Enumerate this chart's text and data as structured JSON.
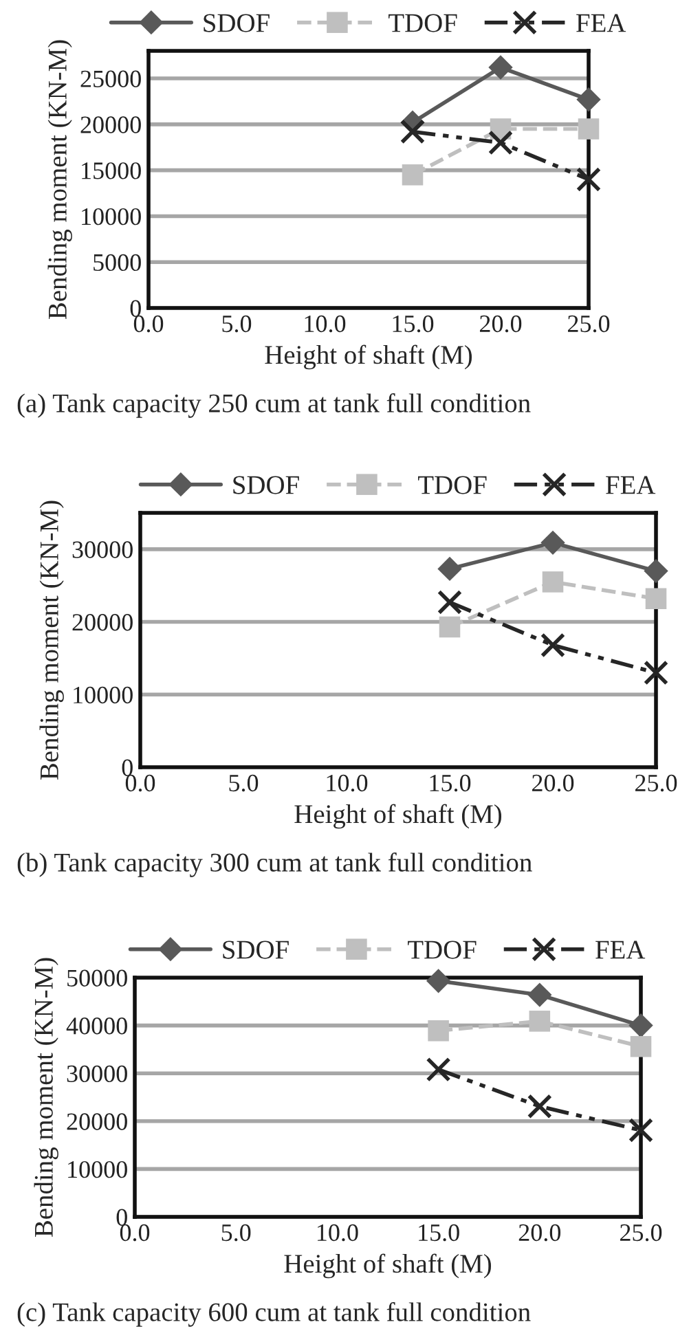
{
  "chart_data": [
    {
      "type": "line",
      "xlabel": "Height of shaft (M)",
      "ylabel": "Bending moment (KN-M)",
      "x": [
        15,
        20,
        25
      ],
      "xlim": [
        0,
        25
      ],
      "xticks": [
        {
          "value": 0,
          "label": "0.0"
        },
        {
          "value": 5,
          "label": "5.0"
        },
        {
          "value": 10,
          "label": "10.0"
        },
        {
          "value": 15,
          "label": "15.0"
        },
        {
          "value": 20,
          "label": "20.0"
        },
        {
          "value": 25,
          "label": "25.0"
        }
      ],
      "ylim": [
        0,
        28000
      ],
      "yticks": [
        0,
        5000,
        10000,
        15000,
        20000,
        25000
      ],
      "grid": "y",
      "legend": "top",
      "annotations": [
        "(a) Tank capacity 250 cum at tank full condition"
      ],
      "series": [
        {
          "name": "SDOF",
          "color": "#595959",
          "marker": "diamond",
          "line_style": "solid",
          "values": [
            20200,
            26200,
            22700
          ]
        },
        {
          "name": "TDOF",
          "color": "#bfbfbf",
          "marker": "square",
          "line_style": "dashed",
          "values": [
            14500,
            19500,
            19500
          ]
        },
        {
          "name": "FEA",
          "color": "#262626",
          "marker": "cross",
          "line_style": "dotted",
          "values": [
            19200,
            18000,
            14000
          ]
        }
      ]
    },
    {
      "type": "line",
      "xlabel": "Height of shaft (M)",
      "ylabel": "Bending moment (KN-M)",
      "x": [
        15,
        20,
        25
      ],
      "xlim": [
        0,
        25
      ],
      "xticks": [
        {
          "value": 0,
          "label": "0.0"
        },
        {
          "value": 5,
          "label": "5.0"
        },
        {
          "value": 10,
          "label": "10.0"
        },
        {
          "value": 15,
          "label": "15.0"
        },
        {
          "value": 20,
          "label": "20.0"
        },
        {
          "value": 25,
          "label": "25.0"
        }
      ],
      "ylim": [
        0,
        35000
      ],
      "yticks": [
        0,
        10000,
        20000,
        30000
      ],
      "grid": "y",
      "legend": "top",
      "annotations": [
        "(b) Tank capacity 300 cum at tank full condition"
      ],
      "series": [
        {
          "name": "SDOF",
          "color": "#595959",
          "marker": "diamond",
          "line_style": "solid",
          "values": [
            27300,
            30900,
            27000
          ]
        },
        {
          "name": "TDOF",
          "color": "#bfbfbf",
          "marker": "square",
          "line_style": "dashed",
          "values": [
            19300,
            25500,
            23200
          ]
        },
        {
          "name": "FEA",
          "color": "#262626",
          "marker": "cross",
          "line_style": "dotted",
          "values": [
            22700,
            16800,
            13000
          ]
        }
      ]
    },
    {
      "type": "line",
      "xlabel": "Height of shaft (M)",
      "ylabel": "Bending moment (KN-M)",
      "x": [
        15,
        20,
        25
      ],
      "xlim": [
        0,
        25
      ],
      "xticks": [
        {
          "value": 0,
          "label": "0.0"
        },
        {
          "value": 5,
          "label": "5.0"
        },
        {
          "value": 10,
          "label": "10.0"
        },
        {
          "value": 15,
          "label": "15.0"
        },
        {
          "value": 20,
          "label": "20.0"
        },
        {
          "value": 25,
          "label": "25.0"
        }
      ],
      "ylim": [
        0,
        50000
      ],
      "yticks": [
        0,
        10000,
        20000,
        30000,
        40000,
        50000
      ],
      "grid": "y",
      "legend": "top",
      "annotations": [
        "(c) Tank capacity 600 cum at tank full condition"
      ],
      "series": [
        {
          "name": "SDOF",
          "color": "#595959",
          "marker": "diamond",
          "line_style": "solid",
          "values": [
            49300,
            46400,
            40000
          ]
        },
        {
          "name": "TDOF",
          "color": "#bfbfbf",
          "marker": "square",
          "line_style": "dashed",
          "values": [
            38900,
            40900,
            35600
          ]
        },
        {
          "name": "FEA",
          "color": "#262626",
          "marker": "cross",
          "line_style": "dotted",
          "values": [
            30800,
            23100,
            18100
          ]
        }
      ]
    }
  ]
}
